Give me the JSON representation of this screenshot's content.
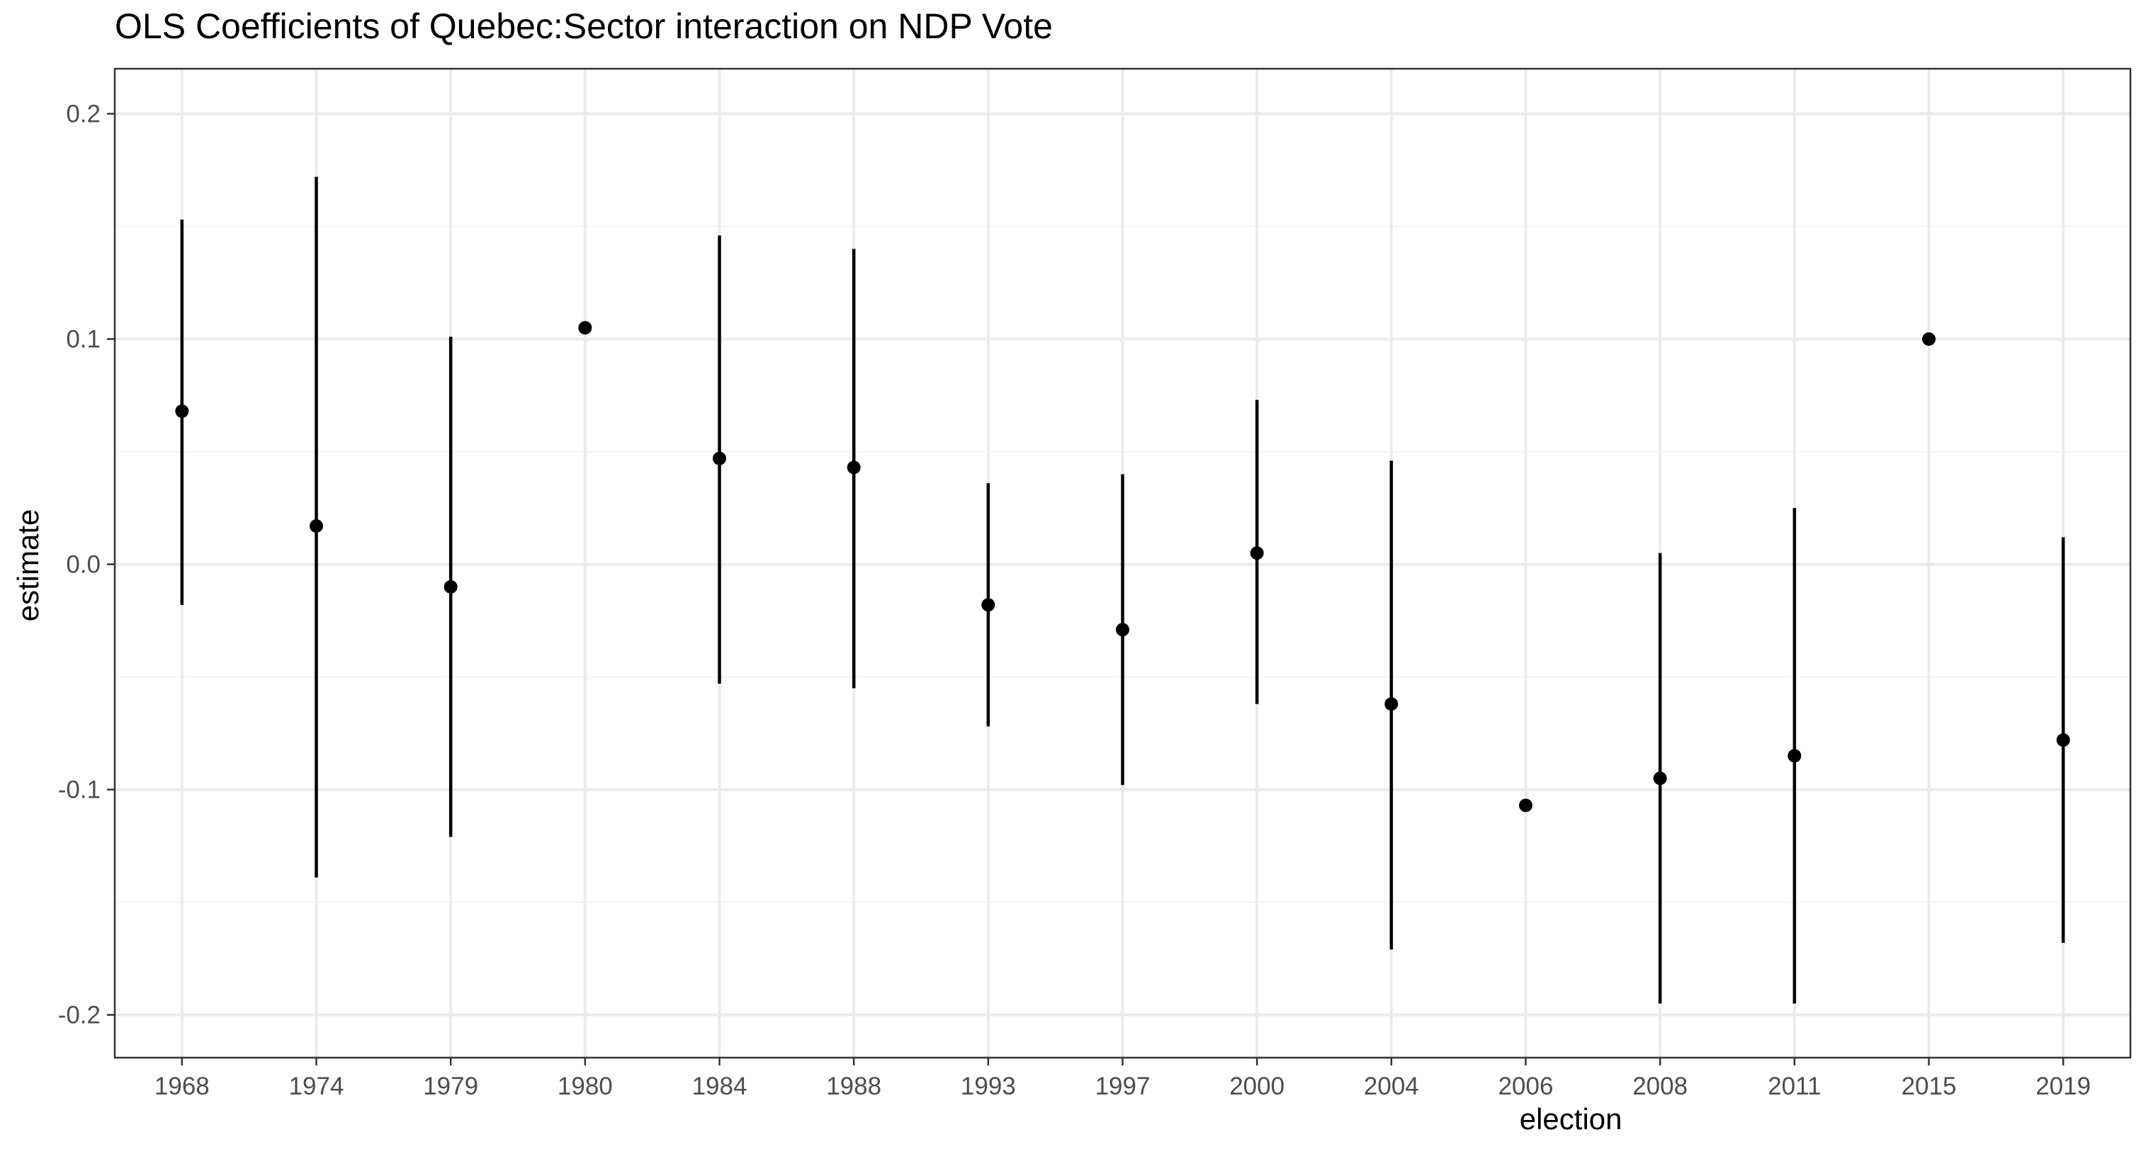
{
  "chart_data": {
    "type": "pointrange",
    "title": "OLS Coefficients of Quebec:Sector interaction on NDP Vote",
    "xlabel": "election",
    "ylabel": "estimate",
    "ylim": [
      -0.219,
      0.22
    ],
    "y_ticks": [
      -0.2,
      -0.1,
      0.0,
      0.1,
      0.2
    ],
    "y_tick_labels": [
      "-0.2",
      "-0.1",
      "0.0",
      "0.1",
      "0.2"
    ],
    "grid": true,
    "categories": [
      "1968",
      "1974",
      "1979",
      "1980",
      "1984",
      "1988",
      "1993",
      "1997",
      "2000",
      "2004",
      "2006",
      "2008",
      "2011",
      "2015",
      "2019"
    ],
    "estimate": [
      0.068,
      0.017,
      -0.01,
      0.105,
      0.047,
      0.043,
      -0.018,
      -0.029,
      0.005,
      -0.062,
      -0.107,
      -0.095,
      -0.085,
      0.1,
      -0.078
    ],
    "conf_low": [
      -0.018,
      -0.139,
      -0.121,
      null,
      -0.053,
      -0.055,
      -0.072,
      -0.098,
      -0.062,
      -0.171,
      null,
      -0.195,
      -0.195,
      null,
      -0.168
    ],
    "conf_high": [
      0.153,
      0.172,
      0.101,
      null,
      0.146,
      0.14,
      0.036,
      0.04,
      0.073,
      0.046,
      null,
      0.005,
      0.025,
      null,
      0.012
    ],
    "colors": {
      "point": "#000000",
      "grid_major": "#ebebeb",
      "grid_minor": "#f4f4f4",
      "panel_border": "#333333",
      "axis_text": "#4d4d4d"
    }
  }
}
